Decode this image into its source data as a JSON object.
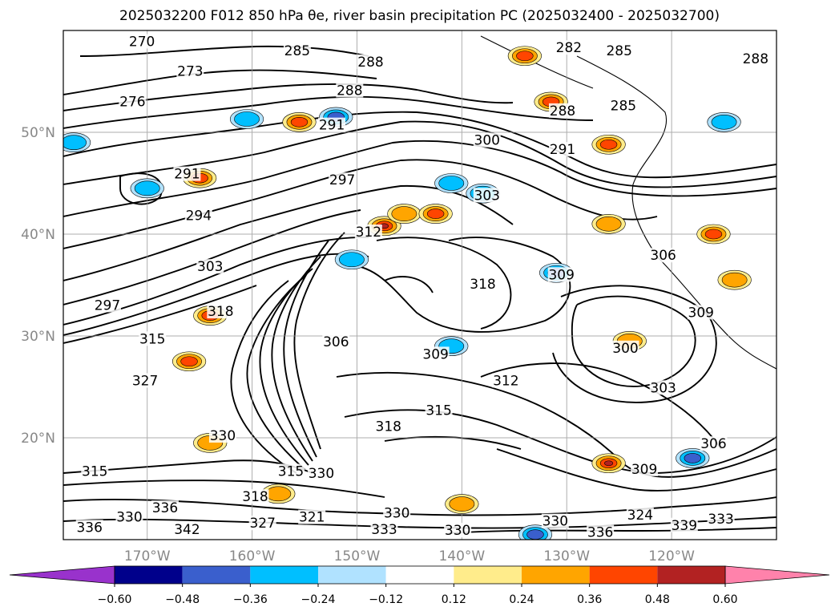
{
  "title": "2025032200 F012 850 hPa θe, river basin precipitation PC (2025032400 - 2025032700)",
  "chart_data": {
    "type": "contour_map",
    "title": "2025032200 F012 850 hPa θe, river basin precipitation PC (2025032400 - 2025032700)",
    "lon_range": [
      -178,
      -110
    ],
    "lat_range": [
      10,
      60
    ],
    "lat_ticks": [
      {
        "value": 20,
        "label": "20°N"
      },
      {
        "value": 30,
        "label": "30°N"
      },
      {
        "value": 40,
        "label": "40°N"
      },
      {
        "value": 50,
        "label": "50°N"
      }
    ],
    "lon_ticks": [
      {
        "value": -170,
        "label": "170°W"
      },
      {
        "value": -160,
        "label": "160°W"
      },
      {
        "value": -150,
        "label": "150°W"
      },
      {
        "value": -140,
        "label": "140°W"
      },
      {
        "value": -130,
        "label": "130°W"
      },
      {
        "value": -120,
        "label": "120°W"
      }
    ],
    "grid": true,
    "contour_field": "850 hPa theta-e (K)",
    "contour_labels": [
      {
        "text": "270",
        "lon": -170.5,
        "lat": 58.7
      },
      {
        "text": "273",
        "lon": -165.9,
        "lat": 55.8
      },
      {
        "text": "276",
        "lon": -171.4,
        "lat": 52.8
      },
      {
        "text": "285",
        "lon": -155.7,
        "lat": 57.8
      },
      {
        "text": "288",
        "lon": -150.7,
        "lat": 53.9
      },
      {
        "text": "288",
        "lon": -148.7,
        "lat": 56.7
      },
      {
        "text": "291",
        "lon": -152.4,
        "lat": 50.5
      },
      {
        "text": "291",
        "lon": -166.2,
        "lat": 45.7
      },
      {
        "text": "294",
        "lon": -165.1,
        "lat": 41.6
      },
      {
        "text": "297",
        "lon": -151.4,
        "lat": 45.1
      },
      {
        "text": "300",
        "lon": -137.6,
        "lat": 49.0
      },
      {
        "text": "291",
        "lon": -130.4,
        "lat": 48.1
      },
      {
        "text": "303",
        "lon": -137.6,
        "lat": 43.6
      },
      {
        "text": "312",
        "lon": -148.9,
        "lat": 40.0
      },
      {
        "text": "303",
        "lon": -164.0,
        "lat": 36.6
      },
      {
        "text": "297",
        "lon": -173.8,
        "lat": 32.8
      },
      {
        "text": "318",
        "lon": -138.0,
        "lat": 34.9
      },
      {
        "text": "309",
        "lon": -130.5,
        "lat": 35.8
      },
      {
        "text": "306",
        "lon": -120.8,
        "lat": 37.7
      },
      {
        "text": "309",
        "lon": -117.2,
        "lat": 32.1
      },
      {
        "text": "300",
        "lon": -124.4,
        "lat": 28.6
      },
      {
        "text": "309",
        "lon": -142.5,
        "lat": 28.0
      },
      {
        "text": "312",
        "lon": -135.8,
        "lat": 25.4
      },
      {
        "text": "303",
        "lon": -120.8,
        "lat": 24.7
      },
      {
        "text": "306",
        "lon": -152.0,
        "lat": 29.2
      },
      {
        "text": "315",
        "lon": -142.2,
        "lat": 22.5
      },
      {
        "text": "318",
        "lon": -147.0,
        "lat": 20.9
      },
      {
        "text": "315",
        "lon": -169.5,
        "lat": 29.5
      },
      {
        "text": "318",
        "lon": -163.0,
        "lat": 32.2
      },
      {
        "text": "327",
        "lon": -170.2,
        "lat": 25.4
      },
      {
        "text": "330",
        "lon": -162.8,
        "lat": 20.0
      },
      {
        "text": "306",
        "lon": -116.0,
        "lat": 19.2
      },
      {
        "text": "309",
        "lon": -122.6,
        "lat": 16.7
      },
      {
        "text": "330",
        "lon": -153.4,
        "lat": 16.3
      },
      {
        "text": "330",
        "lon": -146.2,
        "lat": 12.4
      },
      {
        "text": "321",
        "lon": -154.3,
        "lat": 12.0
      },
      {
        "text": "327",
        "lon": -159.0,
        "lat": 11.4
      },
      {
        "text": "330",
        "lon": -171.7,
        "lat": 12.0
      },
      {
        "text": "336",
        "lon": -168.3,
        "lat": 12.9
      },
      {
        "text": "342",
        "lon": -166.2,
        "lat": 10.8
      },
      {
        "text": "336",
        "lon": -175.5,
        "lat": 11.0
      },
      {
        "text": "333",
        "lon": -147.4,
        "lat": 10.8
      },
      {
        "text": "330",
        "lon": -140.4,
        "lat": 10.7
      },
      {
        "text": "330",
        "lon": -131.1,
        "lat": 11.6
      },
      {
        "text": "336",
        "lon": -126.8,
        "lat": 10.5
      },
      {
        "text": "324",
        "lon": -123.0,
        "lat": 12.2
      },
      {
        "text": "339",
        "lon": -118.8,
        "lat": 11.2
      },
      {
        "text": "333",
        "lon": -115.3,
        "lat": 11.8
      },
      {
        "text": "282",
        "lon": -129.8,
        "lat": 58.1
      },
      {
        "text": "285",
        "lon": -124.6,
        "lat": 52.4
      },
      {
        "text": "285",
        "lon": -125.0,
        "lat": 57.8
      },
      {
        "text": "288",
        "lon": -112.0,
        "lat": 57.0
      },
      {
        "text": "288",
        "lon": -130.4,
        "lat": 51.9
      },
      {
        "text": "315",
        "lon": -175.0,
        "lat": 16.5
      },
      {
        "text": "315",
        "lon": -156.3,
        "lat": 16.5
      },
      {
        "text": "318",
        "lon": -159.7,
        "lat": 14.0
      }
    ],
    "colorbar": {
      "variable": "river basin precipitation PC",
      "extend": "both",
      "boundaries": [
        -0.72,
        -0.6,
        -0.48,
        -0.36,
        -0.24,
        -0.12,
        0.12,
        0.24,
        0.36,
        0.48,
        0.6,
        0.72
      ],
      "tick_labels": [
        "−0.60",
        "−0.48",
        "−0.36",
        "−0.24",
        "−0.12",
        "0.12",
        "0.24",
        "0.36",
        "0.48",
        "0.60"
      ],
      "colors": [
        "#9932cc",
        "#00008b",
        "#3a5fcd",
        "#00bfff",
        "#b0e2ff",
        "#ffffff",
        "#ffec8b",
        "#ffa500",
        "#ff4500",
        "#b22222",
        "#ff82ab"
      ],
      "under_color": "#9932cc",
      "over_color": "#ff82ab"
    },
    "precip_blobs": [
      {
        "lon": -165.0,
        "lat": 45.5,
        "value": 0.45
      },
      {
        "lon": -164.0,
        "lat": 32.0,
        "value": 0.45
      },
      {
        "lon": -166.0,
        "lat": 27.5,
        "value": 0.4
      },
      {
        "lon": -147.4,
        "lat": 40.8,
        "value": 0.5
      },
      {
        "lon": -145.5,
        "lat": 42.0,
        "value": 0.35
      },
      {
        "lon": -142.5,
        "lat": 42.0,
        "value": 0.4
      },
      {
        "lon": -134.0,
        "lat": 57.5,
        "value": 0.45
      },
      {
        "lon": -131.5,
        "lat": 53.0,
        "value": 0.4
      },
      {
        "lon": -126.0,
        "lat": 48.8,
        "value": 0.45
      },
      {
        "lon": -155.5,
        "lat": 51.0,
        "value": 0.4
      },
      {
        "lon": -126.0,
        "lat": 17.5,
        "value": 0.5
      },
      {
        "lon": -116.0,
        "lat": 40.0,
        "value": 0.4
      },
      {
        "lon": -114.0,
        "lat": 35.5,
        "value": 0.35
      },
      {
        "lon": -140.0,
        "lat": 13.5,
        "value": 0.35
      },
      {
        "lon": -157.5,
        "lat": 14.5,
        "value": 0.35
      },
      {
        "lon": -164.0,
        "lat": 19.5,
        "value": 0.35
      },
      {
        "lon": -126.0,
        "lat": 41.0,
        "value": 0.35
      },
      {
        "lon": -124.0,
        "lat": 29.5,
        "value": 0.35
      },
      {
        "lon": -152.0,
        "lat": 51.5,
        "value": -0.45
      },
      {
        "lon": -131.0,
        "lat": 36.2,
        "value": -0.4
      },
      {
        "lon": -118.0,
        "lat": 18.0,
        "value": -0.4
      },
      {
        "lon": -115.0,
        "lat": 51.0,
        "value": -0.3
      },
      {
        "lon": -160.5,
        "lat": 51.3,
        "value": -0.3
      },
      {
        "lon": -170.0,
        "lat": 44.5,
        "value": -0.3
      },
      {
        "lon": -141.0,
        "lat": 45.0,
        "value": -0.3
      },
      {
        "lon": -138.0,
        "lat": 44.0,
        "value": -0.3
      },
      {
        "lon": -141.0,
        "lat": 29.0,
        "value": -0.35
      },
      {
        "lon": -133.0,
        "lat": 10.5,
        "value": -0.45
      },
      {
        "lon": -177.0,
        "lat": 49.0,
        "value": -0.3
      },
      {
        "lon": -150.5,
        "lat": 37.5,
        "value": -0.25
      }
    ]
  }
}
